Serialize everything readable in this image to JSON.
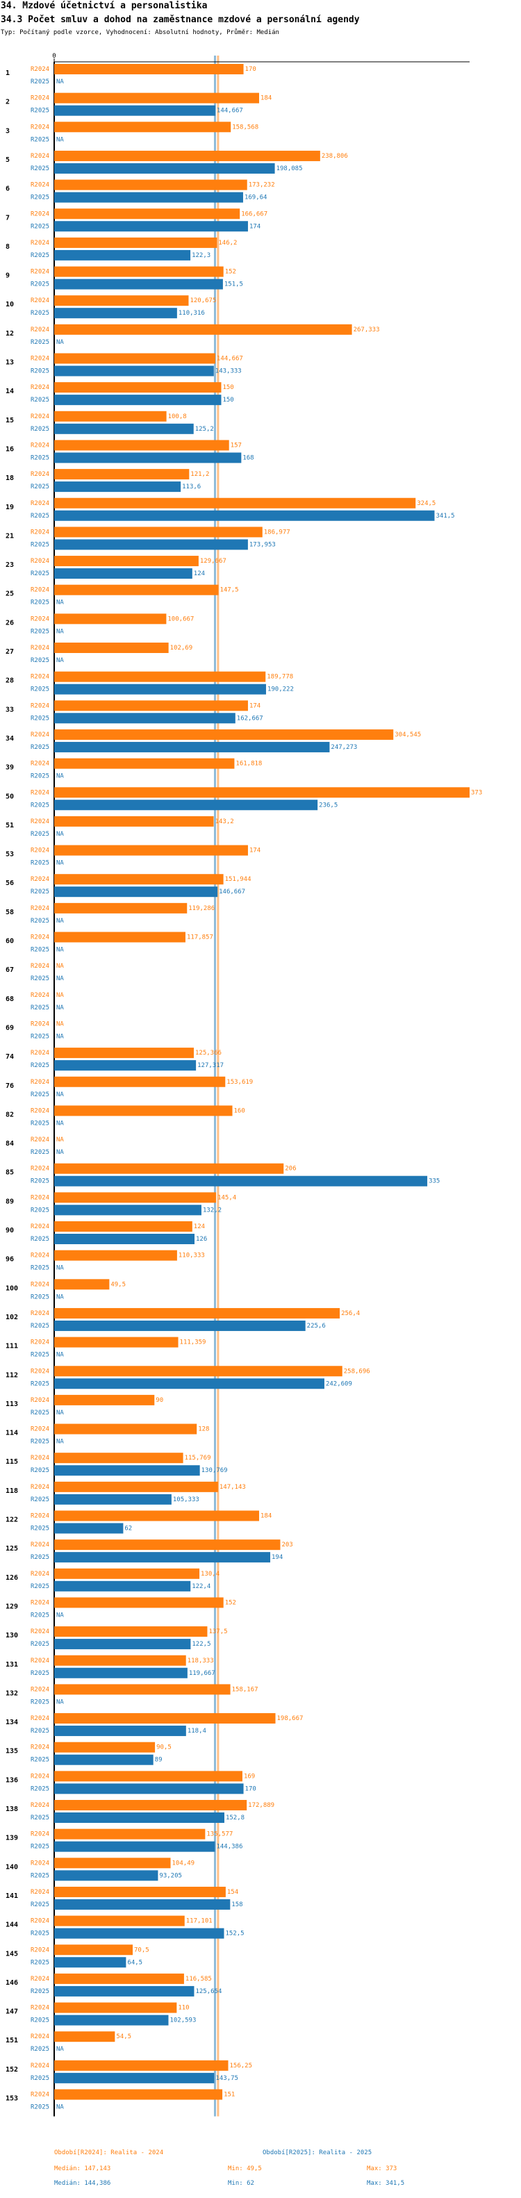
{
  "header": {
    "title": "34. Mzdové účetnictví a personalistika",
    "subtitle": "34.3 Počet smluv a dohod na zaměstnance mzdové a personální agendy",
    "info": "Typ: Počítaný podle vzorce, Vyhodnocení: Absolutní hodnoty, Průměr: Medián"
  },
  "colors": {
    "r2024": "#ff7f0e",
    "r2025": "#1f77b4",
    "axis": "#000000",
    "median_line_2024": "#ffbf86",
    "median_line_2025": "#8fbbd9"
  },
  "chart_data": {
    "type": "bar",
    "orientation": "horizontal",
    "xlim": [
      0,
      373
    ],
    "x_tick_labels": [
      "0"
    ],
    "na_label": "NA",
    "series_labels": [
      "R2024",
      "R2025"
    ],
    "categories": [
      "1",
      "2",
      "3",
      "5",
      "6",
      "7",
      "8",
      "9",
      "10",
      "12",
      "13",
      "14",
      "15",
      "16",
      "18",
      "19",
      "21",
      "23",
      "25",
      "26",
      "27",
      "28",
      "33",
      "34",
      "39",
      "50",
      "51",
      "53",
      "56",
      "58",
      "60",
      "67",
      "68",
      "69",
      "74",
      "76",
      "82",
      "84",
      "85",
      "89",
      "90",
      "96",
      "100",
      "102",
      "111",
      "112",
      "113",
      "114",
      "115",
      "118",
      "122",
      "125",
      "126",
      "129",
      "130",
      "131",
      "132",
      "134",
      "135",
      "136",
      "138",
      "139",
      "140",
      "141",
      "144",
      "145",
      "146",
      "147",
      "151",
      "152",
      "153"
    ],
    "series": [
      {
        "name": "R2024",
        "values": [
          170,
          184,
          158.568,
          238.806,
          173.232,
          166.667,
          146.2,
          152,
          120.675,
          267.333,
          144.667,
          150,
          100.8,
          157,
          121.2,
          324.5,
          186.977,
          129.667,
          147.5,
          100.667,
          102.69,
          189.778,
          174,
          304.545,
          161.818,
          373,
          143.2,
          174,
          151.944,
          119.286,
          117.857,
          null,
          null,
          null,
          125.366,
          153.619,
          160,
          null,
          206,
          145.4,
          124,
          110.333,
          49.5,
          256.4,
          111.359,
          258.696,
          90,
          128,
          115.769,
          147.143,
          184,
          203,
          130.4,
          152,
          137.5,
          118.333,
          158.167,
          198.667,
          90.5,
          169,
          172.889,
          135.577,
          104.49,
          154,
          117.101,
          70.5,
          116.585,
          110,
          54.5,
          156.25,
          151
        ]
      },
      {
        "name": "R2025",
        "values": [
          null,
          144.667,
          null,
          198.085,
          169.64,
          174,
          122.3,
          151.5,
          110.316,
          null,
          143.333,
          150,
          125.2,
          168,
          113.6,
          341.5,
          173.953,
          124,
          null,
          null,
          null,
          190.222,
          162.667,
          247.273,
          null,
          236.5,
          null,
          null,
          146.667,
          null,
          null,
          null,
          null,
          null,
          127.317,
          null,
          null,
          null,
          335,
          132.2,
          126,
          null,
          null,
          225.6,
          null,
          242.609,
          null,
          null,
          130.769,
          105.333,
          62,
          194,
          122.4,
          null,
          122.5,
          119.667,
          null,
          118.4,
          89,
          170,
          152.8,
          144.386,
          93.205,
          158,
          152.5,
          64.5,
          125.654,
          102.593,
          null,
          143.75,
          null
        ]
      }
    ],
    "legend": {
      "r2024_label": "Období[R2024]: Realita - 2024",
      "r2025_label": "Období[R2025]: Realita - 2025",
      "r2024_median": "Medián: 147,143",
      "r2024_min": "Min: 49,5",
      "r2024_max": "Max: 373",
      "r2025_median": "Medián: 144,386",
      "r2025_min": "Min: 62",
      "r2025_max": "Max: 341,5"
    },
    "medians": {
      "r2024": 147.143,
      "r2025": 144.386
    }
  }
}
